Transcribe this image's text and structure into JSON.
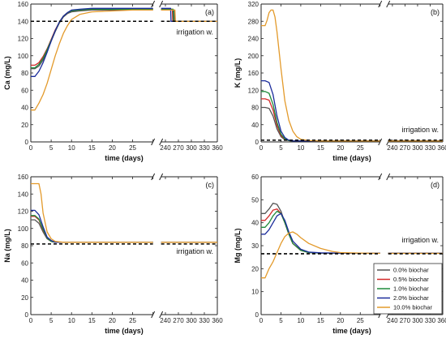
{
  "series_colors": {
    "0.0% biochar": "#555555",
    "0.5% biochar": "#d42a2a",
    "1.0% biochar": "#1f8a3b",
    "2.0% biochar": "#1b2c9b",
    "10.0% biochar": "#e39a2b"
  },
  "legend": [
    "0.0% biochar",
    "0.5% biochar",
    "1.0% biochar",
    "2.0% biochar",
    "10.0% biochar"
  ],
  "chart_data": [
    {
      "type": "line",
      "panel_label": "(a)",
      "xlabel": "time (days)",
      "ylabel": "Ca (mg/L)",
      "ylim": [
        0,
        160
      ],
      "yticks": [
        0,
        20,
        40,
        60,
        80,
        100,
        120,
        140,
        160
      ],
      "x_segments": [
        {
          "range": [
            0,
            30
          ],
          "ticks": [
            0,
            5,
            10,
            15,
            20,
            25,
            30
          ],
          "tick_labels": [
            "0",
            "5",
            "10",
            "15",
            "20",
            "25",
            ""
          ]
        },
        {
          "range": [
            230,
            360
          ],
          "ticks": [
            240,
            270,
            300,
            330,
            360
          ],
          "tick_labels": [
            "240",
            "270",
            "300",
            "330",
            "360"
          ]
        }
      ],
      "reference": {
        "label": "irrigation w.",
        "value": 140
      },
      "series": [
        {
          "name": "0.0% biochar",
          "x": [
            0,
            1,
            2,
            3,
            4,
            5,
            6,
            7,
            8,
            9,
            10,
            12,
            15,
            20,
            25,
            30,
            240,
            250,
            260,
            261,
            265,
            300,
            330,
            360
          ],
          "values": [
            85,
            85,
            88,
            95,
            105,
            117,
            128,
            138,
            145,
            149,
            151,
            152,
            153,
            153,
            153,
            153,
            153,
            153,
            153,
            140,
            140,
            140,
            140,
            140
          ]
        },
        {
          "name": "0.5% biochar",
          "x": [
            0,
            1,
            2,
            3,
            4,
            5,
            6,
            7,
            8,
            9,
            10,
            12,
            15,
            20,
            25,
            30,
            240,
            250,
            256,
            257,
            265,
            300,
            330,
            360
          ],
          "values": [
            89,
            89,
            92,
            99,
            108,
            119,
            130,
            139,
            146,
            150,
            152,
            153,
            154,
            154,
            154,
            154,
            154,
            154,
            154,
            140,
            140,
            140,
            140,
            140
          ]
        },
        {
          "name": "1.0% biochar",
          "x": [
            0,
            1,
            2,
            3,
            4,
            5,
            6,
            7,
            8,
            9,
            10,
            12,
            15,
            20,
            25,
            30,
            240,
            250,
            258,
            259,
            265,
            300,
            330,
            360
          ],
          "values": [
            86,
            86,
            90,
            97,
            107,
            118,
            129,
            139,
            146,
            150,
            152,
            153,
            154,
            154,
            154,
            154,
            154,
            154,
            154,
            140,
            140,
            140,
            140,
            140
          ]
        },
        {
          "name": "2.0% biochar",
          "x": [
            0,
            1,
            2,
            3,
            4,
            5,
            6,
            7,
            8,
            9,
            10,
            12,
            15,
            20,
            25,
            30,
            240,
            250,
            252,
            253,
            265,
            300,
            330,
            360
          ],
          "values": [
            76,
            76,
            82,
            92,
            104,
            117,
            129,
            139,
            146,
            150,
            153,
            154,
            155,
            155,
            155,
            155,
            155,
            155,
            155,
            140,
            140,
            140,
            140,
            140
          ]
        },
        {
          "name": "10.0% biochar",
          "x": [
            0,
            1,
            2,
            3,
            4,
            5,
            6,
            7,
            8,
            9,
            10,
            12,
            15,
            20,
            25,
            30,
            240,
            262,
            263,
            265,
            300,
            330,
            360
          ],
          "values": [
            37,
            37,
            45,
            55,
            68,
            84,
            100,
            114,
            126,
            135,
            142,
            148,
            151,
            152,
            153,
            153,
            153,
            153,
            140,
            140,
            140,
            140,
            140
          ]
        }
      ]
    },
    {
      "type": "line",
      "panel_label": "(b)",
      "xlabel": "time (days)",
      "ylabel": "K (mg/L)",
      "ylim": [
        0,
        320
      ],
      "yticks": [
        0,
        40,
        80,
        120,
        160,
        200,
        240,
        280,
        320
      ],
      "x_segments": [
        {
          "range": [
            0,
            30
          ],
          "ticks": [
            0,
            5,
            10,
            15,
            20,
            25,
            30
          ],
          "tick_labels": [
            "0",
            "5",
            "10",
            "15",
            "20",
            "25",
            ""
          ]
        },
        {
          "range": [
            230,
            360
          ],
          "ticks": [
            240,
            270,
            300,
            330,
            360
          ],
          "tick_labels": [
            "240",
            "270",
            "300",
            "330",
            "360"
          ]
        }
      ],
      "reference": {
        "label": "irrigation w.",
        "value": 4
      },
      "series": [
        {
          "name": "0.0% biochar",
          "x": [
            0,
            1,
            2,
            3,
            4,
            5,
            6,
            7,
            8,
            10,
            15,
            20,
            25,
            30,
            240,
            360
          ],
          "values": [
            80,
            80,
            78,
            60,
            30,
            12,
            5,
            3,
            2,
            2,
            2,
            2,
            2,
            2,
            2,
            2
          ]
        },
        {
          "name": "0.5% biochar",
          "x": [
            0,
            1,
            2,
            3,
            4,
            5,
            6,
            7,
            8,
            10,
            15,
            20,
            25,
            30,
            240,
            360
          ],
          "values": [
            100,
            100,
            97,
            74,
            38,
            15,
            6,
            3,
            2,
            2,
            2,
            2,
            2,
            2,
            2,
            2
          ]
        },
        {
          "name": "1.0% biochar",
          "x": [
            0,
            1,
            2,
            3,
            4,
            5,
            6,
            7,
            8,
            10,
            15,
            20,
            25,
            30,
            240,
            360
          ],
          "values": [
            117,
            117,
            113,
            87,
            45,
            18,
            7,
            3,
            2,
            2,
            2,
            2,
            2,
            2,
            2,
            2
          ]
        },
        {
          "name": "2.0% biochar",
          "x": [
            0,
            1,
            2,
            3,
            4,
            5,
            6,
            7,
            8,
            10,
            15,
            20,
            25,
            30,
            240,
            360
          ],
          "values": [
            142,
            142,
            138,
            110,
            60,
            25,
            10,
            4,
            2,
            2,
            2,
            2,
            2,
            2,
            2,
            2
          ]
        },
        {
          "name": "10.0% biochar",
          "x": [
            0,
            1,
            1.5,
            2,
            2.5,
            3,
            3.5,
            4,
            5,
            6,
            7,
            8,
            9,
            10,
            12,
            15,
            20,
            25,
            30,
            240,
            360
          ],
          "values": [
            270,
            270,
            282,
            300,
            306,
            306,
            290,
            255,
            170,
            95,
            50,
            25,
            12,
            6,
            3,
            2,
            2,
            2,
            2,
            2,
            2
          ]
        }
      ]
    },
    {
      "type": "line",
      "panel_label": "(c)",
      "xlabel": "time (days)",
      "ylabel": "Na (mg/L)",
      "ylim": [
        0,
        160
      ],
      "yticks": [
        0,
        20,
        40,
        60,
        80,
        100,
        120,
        140,
        160
      ],
      "x_segments": [
        {
          "range": [
            0,
            30
          ],
          "ticks": [
            0,
            5,
            10,
            15,
            20,
            25,
            30
          ],
          "tick_labels": [
            "0",
            "5",
            "10",
            "15",
            "20",
            "25",
            ""
          ]
        },
        {
          "range": [
            230,
            360
          ],
          "ticks": [
            240,
            270,
            300,
            330,
            360
          ],
          "tick_labels": [
            "240",
            "270",
            "300",
            "330",
            "360"
          ]
        }
      ],
      "reference": {
        "label": "irrigation w.",
        "value": 82
      },
      "series": [
        {
          "name": "0.0% biochar",
          "x": [
            0,
            1,
            2,
            3,
            4,
            5,
            6,
            8,
            10,
            15,
            20,
            25,
            30,
            240,
            360
          ],
          "values": [
            110,
            110,
            106,
            96,
            88,
            85,
            84,
            84,
            84,
            84,
            84,
            84,
            84,
            84,
            84
          ]
        },
        {
          "name": "0.5% biochar",
          "x": [
            0,
            1,
            2,
            3,
            4,
            5,
            6,
            8,
            10,
            15,
            20,
            25,
            30,
            240,
            360
          ],
          "values": [
            114,
            114,
            110,
            98,
            89,
            85,
            84,
            84,
            84,
            84,
            84,
            84,
            84,
            84,
            84
          ]
        },
        {
          "name": "1.0% biochar",
          "x": [
            0,
            1,
            2,
            3,
            4,
            5,
            6,
            8,
            10,
            15,
            20,
            25,
            30,
            240,
            360
          ],
          "values": [
            115,
            115,
            111,
            99,
            89,
            85,
            84,
            84,
            84,
            84,
            84,
            84,
            84,
            84,
            84
          ]
        },
        {
          "name": "2.0% biochar",
          "x": [
            0,
            1,
            2,
            3,
            4,
            5,
            6,
            8,
            10,
            15,
            20,
            25,
            30,
            240,
            360
          ],
          "values": [
            121,
            121,
            116,
            102,
            90,
            86,
            84,
            84,
            84,
            84,
            84,
            84,
            84,
            84,
            84
          ]
        },
        {
          "name": "10.0% biochar",
          "x": [
            0,
            1,
            2,
            2.5,
            3,
            4,
            5,
            6,
            8,
            10,
            15,
            20,
            25,
            30,
            240,
            360
          ],
          "values": [
            152,
            152,
            152,
            140,
            118,
            96,
            88,
            85,
            84,
            84,
            84,
            84,
            84,
            84,
            84,
            84
          ]
        }
      ]
    },
    {
      "type": "line",
      "panel_label": "(d)",
      "xlabel": "time (days)",
      "ylabel": "Mg (mg/L)",
      "ylim": [
        0,
        60
      ],
      "yticks": [
        0,
        10,
        20,
        30,
        40,
        50,
        60
      ],
      "x_segments": [
        {
          "range": [
            0,
            30
          ],
          "ticks": [
            0,
            5,
            10,
            15,
            20,
            25,
            30
          ],
          "tick_labels": [
            "0",
            "5",
            "10",
            "15",
            "20",
            "25",
            ""
          ]
        },
        {
          "range": [
            230,
            360
          ],
          "ticks": [
            240,
            270,
            300,
            330,
            360
          ],
          "tick_labels": [
            "240",
            "270",
            "300",
            "330",
            "360"
          ]
        }
      ],
      "reference": {
        "label": "irrigation w.",
        "value": 26.5
      },
      "series": [
        {
          "name": "0.0% biochar",
          "x": [
            0,
            1,
            2,
            3,
            4,
            5,
            6,
            7,
            8,
            10,
            12,
            15,
            20,
            25,
            30,
            240,
            360
          ],
          "values": [
            44,
            44,
            46,
            48.5,
            48,
            45,
            40,
            35,
            31,
            28,
            27,
            26.8,
            26.8,
            26.8,
            26.8,
            26.8,
            26.8
          ]
        },
        {
          "name": "0.5% biochar",
          "x": [
            0,
            1,
            2,
            3,
            4,
            5,
            6,
            7,
            8,
            10,
            12,
            15,
            20,
            25,
            30,
            240,
            360
          ],
          "values": [
            41,
            41,
            43,
            45.5,
            46,
            44,
            40,
            35,
            31,
            28,
            27,
            26.8,
            26.8,
            26.8,
            26.8,
            26.8,
            26.8
          ]
        },
        {
          "name": "1.0% biochar",
          "x": [
            0,
            1,
            2,
            3,
            4,
            5,
            6,
            7,
            8,
            10,
            12,
            15,
            20,
            25,
            30,
            240,
            360
          ],
          "values": [
            38,
            38,
            40,
            43,
            45,
            44,
            40,
            35,
            31,
            28,
            27,
            26.8,
            26.8,
            26.8,
            26.8,
            26.8,
            26.8
          ]
        },
        {
          "name": "2.0% biochar",
          "x": [
            0,
            1,
            2,
            3,
            4,
            5,
            6,
            7,
            8,
            10,
            12,
            15,
            20,
            25,
            30,
            240,
            360
          ],
          "values": [
            35,
            35,
            37,
            40,
            43,
            44,
            41,
            36,
            32,
            28.5,
            27.2,
            26.9,
            26.8,
            26.8,
            26.8,
            26.8,
            26.8
          ]
        },
        {
          "name": "10.0% biochar",
          "x": [
            0,
            1,
            2,
            3,
            4,
            5,
            6,
            7,
            8,
            9,
            10,
            12,
            15,
            18,
            20,
            25,
            30,
            240,
            360
          ],
          "values": [
            16,
            16,
            20,
            23,
            27,
            31,
            34,
            35.5,
            36,
            35,
            33.5,
            31,
            28.8,
            27.5,
            27,
            26.8,
            26.7,
            26.7,
            26.7
          ]
        }
      ]
    }
  ]
}
